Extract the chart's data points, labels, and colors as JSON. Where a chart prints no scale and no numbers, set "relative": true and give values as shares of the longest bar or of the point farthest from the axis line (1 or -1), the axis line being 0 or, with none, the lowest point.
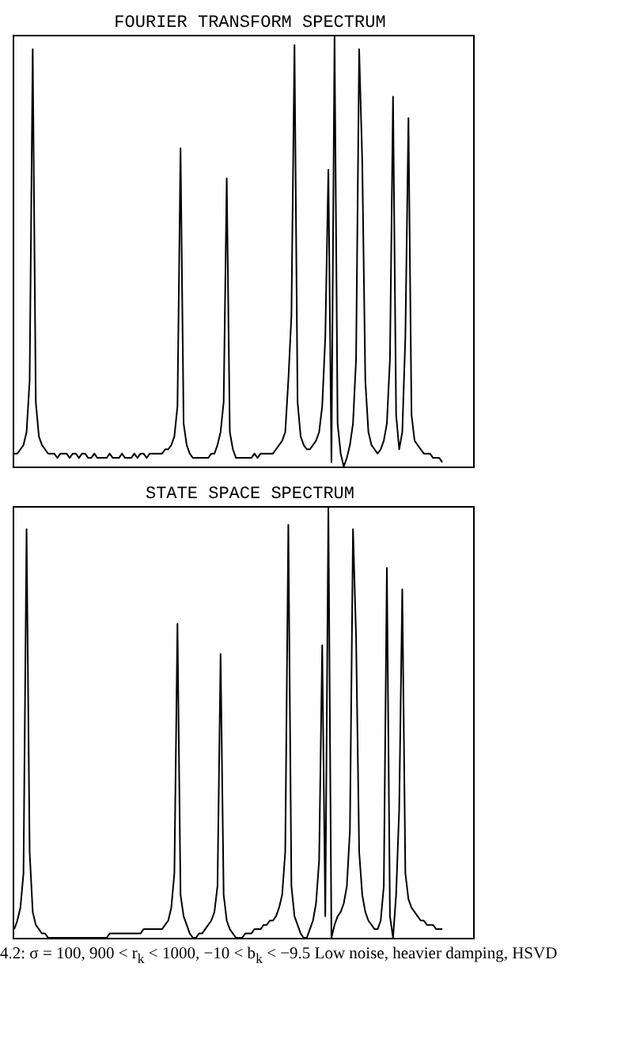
{
  "chart_data": [
    {
      "type": "line",
      "title": "FOURIER TRANSFORM SPECTRUM",
      "relative": true,
      "tick_labels": false,
      "categories": [
        null,
        null,
        null,
        null,
        null,
        null,
        null,
        null,
        null,
        null,
        null,
        null,
        null,
        null,
        null,
        null,
        null,
        null,
        null,
        null,
        null,
        null,
        null,
        null,
        null,
        null,
        null,
        null,
        null,
        null,
        null,
        null,
        null,
        null,
        null,
        null,
        null,
        null,
        null,
        null,
        null,
        null,
        null,
        null,
        null,
        null,
        null,
        null,
        null,
        null,
        null,
        null,
        null,
        null,
        null,
        null,
        null,
        null,
        null,
        null,
        null,
        null,
        null,
        null,
        null,
        null,
        null,
        null,
        null,
        null,
        null,
        null,
        null,
        null,
        null,
        null,
        null,
        null,
        null,
        null,
        null,
        null,
        null,
        null,
        null,
        null,
        null,
        null,
        null,
        null,
        null,
        null,
        null,
        null,
        null,
        null,
        null,
        null,
        null,
        null,
        null,
        null,
        null,
        null,
        null,
        null,
        null,
        null,
        null,
        null,
        null,
        null,
        null,
        null,
        null,
        null,
        null,
        null,
        null,
        null,
        null,
        null,
        null,
        null,
        null,
        null,
        null,
        null,
        null,
        null,
        null,
        null,
        null,
        null,
        null,
        null,
        null,
        null,
        null,
        null,
        null,
        null,
        null,
        null,
        null,
        null,
        null,
        null,
        null,
        null
      ],
      "series": [
        {
          "color": "#000000",
          "values": [
            0.03,
            0.03,
            0.04,
            0.05,
            0.08,
            0.2,
            0.97,
            0.15,
            0.07,
            0.05,
            0.04,
            0.03,
            0.03,
            0.03,
            0.02,
            0.03,
            0.03,
            0.03,
            0.02,
            0.03,
            0.03,
            0.02,
            0.03,
            0.03,
            0.02,
            0.02,
            0.03,
            0.02,
            0.02,
            0.02,
            0.02,
            0.03,
            0.02,
            0.02,
            0.02,
            0.03,
            0.02,
            0.02,
            0.02,
            0.03,
            0.02,
            0.03,
            0.03,
            0.02,
            0.03,
            0.03,
            0.03,
            0.03,
            0.03,
            0.04,
            0.04,
            0.05,
            0.07,
            0.14,
            0.74,
            0.1,
            0.05,
            0.03,
            0.02,
            0.02,
            0.02,
            0.02,
            0.02,
            0.02,
            0.03,
            0.03,
            0.05,
            0.08,
            0.15,
            0.67,
            0.08,
            0.04,
            0.02,
            0.02,
            0.02,
            0.02,
            0.02,
            0.02,
            0.03,
            0.02,
            0.03,
            0.03,
            0.03,
            0.03,
            0.03,
            0.04,
            0.05,
            0.06,
            0.08,
            0.2,
            0.35,
            0.98,
            0.15,
            0.07,
            0.05,
            0.04,
            0.04,
            0.05,
            0.06,
            0.08,
            0.14,
            0.3,
            0.69,
            0.01,
            1,
            0.1,
            0.03,
            0,
            0.02,
            0.05,
            0.1,
            0.25,
            0.97,
            0.71,
            0.2,
            0.08,
            0.05,
            0.04,
            0.03,
            0.04,
            0.06,
            0.1,
            0.25,
            0.86,
            0.12,
            0.04,
            0.08,
            0.3,
            0.81,
            0.12,
            0.06,
            0.05,
            0.04,
            0.03,
            0.03,
            0.03,
            0.02,
            0.02,
            0.02,
            0.01,
            null,
            null,
            null,
            null,
            null,
            null,
            null,
            null,
            null,
            null
          ]
        }
      ]
    },
    {
      "type": "line",
      "title": "STATE SPACE SPECTRUM",
      "relative": true,
      "tick_labels": false,
      "categories": [
        null,
        null,
        null,
        null,
        null,
        null,
        null,
        null,
        null,
        null,
        null,
        null,
        null,
        null,
        null,
        null,
        null,
        null,
        null,
        null,
        null,
        null,
        null,
        null,
        null,
        null,
        null,
        null,
        null,
        null,
        null,
        null,
        null,
        null,
        null,
        null,
        null,
        null,
        null,
        null,
        null,
        null,
        null,
        null,
        null,
        null,
        null,
        null,
        null,
        null,
        null,
        null,
        null,
        null,
        null,
        null,
        null,
        null,
        null,
        null,
        null,
        null,
        null,
        null,
        null,
        null,
        null,
        null,
        null,
        null,
        null,
        null,
        null,
        null,
        null,
        null,
        null,
        null,
        null,
        null,
        null,
        null,
        null,
        null,
        null,
        null,
        null,
        null,
        null,
        null,
        null,
        null,
        null,
        null,
        null,
        null,
        null,
        null,
        null,
        null,
        null,
        null,
        null,
        null,
        null,
        null,
        null,
        null,
        null,
        null,
        null,
        null,
        null,
        null,
        null,
        null,
        null,
        null,
        null,
        null,
        null,
        null,
        null,
        null,
        null,
        null,
        null,
        null,
        null,
        null,
        null,
        null,
        null,
        null,
        null,
        null,
        null,
        null,
        null,
        null,
        null,
        null,
        null,
        null,
        null,
        null,
        null,
        null,
        null,
        null
      ],
      "series": [
        {
          "color": "#000000",
          "values": [
            0.02,
            0.04,
            0.07,
            0.15,
            0.95,
            0.2,
            0.06,
            0.03,
            0.02,
            0.01,
            0.01,
            0,
            0,
            0,
            0,
            0,
            0,
            0,
            0,
            0,
            0,
            0,
            0,
            0,
            0,
            0,
            0,
            0,
            0,
            0,
            0,
            0.01,
            0.01,
            0.01,
            0.01,
            0.01,
            0.01,
            0.01,
            0.01,
            0.01,
            0.01,
            0.01,
            0.02,
            0.02,
            0.02,
            0.02,
            0.02,
            0.02,
            0.02,
            0.03,
            0.04,
            0.07,
            0.15,
            0.73,
            0.1,
            0.05,
            0.03,
            0.01,
            0,
            0,
            0.01,
            0.01,
            0.02,
            0.03,
            0.04,
            0.06,
            0.12,
            0.66,
            0.1,
            0.04,
            0.02,
            0.01,
            0,
            0,
            0,
            0.01,
            0.01,
            0.01,
            0.02,
            0.02,
            0.02,
            0.03,
            0.03,
            0.04,
            0.04,
            0.05,
            0.07,
            0.1,
            0.2,
            0.96,
            0.12,
            0.05,
            0.03,
            0.01,
            0,
            0,
            0.02,
            0.04,
            0.08,
            0.18,
            0.68,
            0.05,
            1,
            0,
            0.03,
            0.05,
            0.06,
            0.08,
            0.12,
            0.25,
            0.95,
            0.7,
            0.2,
            0.1,
            0.06,
            0.04,
            0.03,
            0.02,
            0.02,
            0.04,
            0.12,
            0.86,
            0.05,
            0,
            0.1,
            0.3,
            0.81,
            0.15,
            0.09,
            0.07,
            0.06,
            0.05,
            0.04,
            0.04,
            0.03,
            0.03,
            0.03,
            0.02,
            0.02,
            0.02,
            null,
            null,
            null,
            null,
            null,
            null,
            null,
            null,
            null,
            null
          ]
        }
      ],
      "annotations": [
        "4.2: σ = 100, 900 < r$_{k}$ < 1000, −10 < b$_{k}$ < −9.5 Low noise, heavier damping, HSVD"
      ]
    }
  ]
}
